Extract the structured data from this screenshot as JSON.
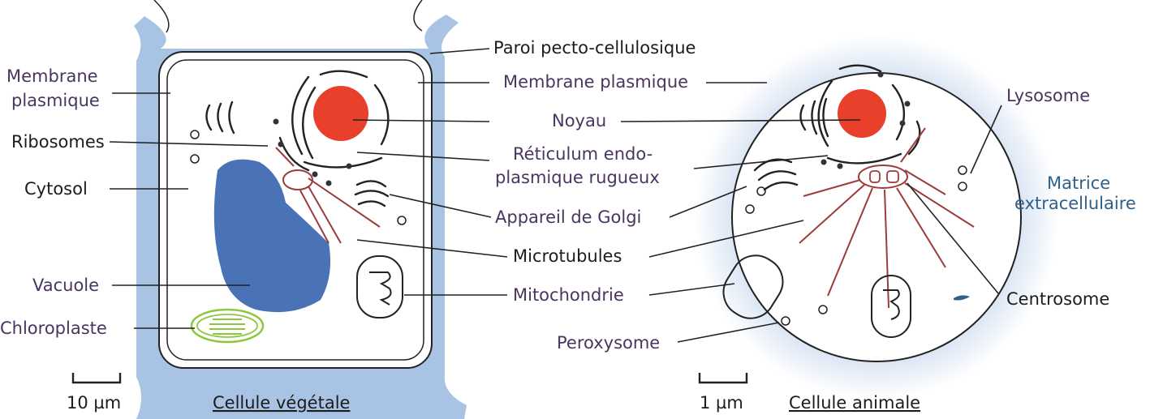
{
  "colors": {
    "wall": "#a9c3e4",
    "nucleus": "#e8402b",
    "vacuole": "#4a72b6",
    "chloroplast": "#8dc63f",
    "microtubule": "#9c3b3b",
    "matrix_halo": "#c9d9ef",
    "label_dark": "#1c1c1c",
    "label_purple": "#4a3560",
    "label_teal": "#2f5f8a"
  },
  "plant_cell": {
    "caption": "Cellule végétale",
    "scale": "10 µm",
    "labels": {
      "membrane_1": "Membrane",
      "membrane_2": "plasmique",
      "ribosomes": "Ribosomes",
      "cytosol": "Cytosol",
      "vacuole": "Vacuole",
      "chloroplast": "Chloroplaste"
    }
  },
  "center_labels": {
    "wall": "Paroi pecto-cellulosique",
    "membrane": "Membrane plasmique",
    "nucleus": "Noyau",
    "rer_1": "Réticulum endo-",
    "rer_2": "plasmique rugueux",
    "golgi": "Appareil de Golgi",
    "microtubules": "Microtubules",
    "mitochondria": "Mitochondrie",
    "peroxisome": "Peroxysome"
  },
  "animal_cell": {
    "caption": "Cellule animale",
    "scale": "1 µm",
    "labels": {
      "lysosome": "Lysosome",
      "matrix_1": "Matrice",
      "matrix_2": "extracellulaire",
      "centrosome": "Centrosome"
    }
  }
}
